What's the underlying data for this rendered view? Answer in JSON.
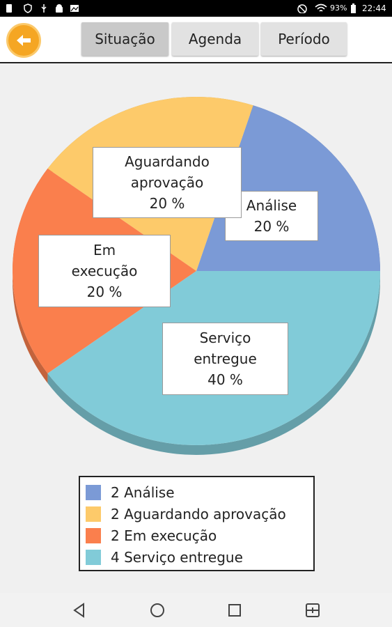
{
  "status_bar": {
    "battery_percent": "93%",
    "time": "22:44",
    "icons": [
      "sim-icon",
      "shield-icon",
      "usb-icon",
      "android-icon",
      "image-icon",
      "mute-icon",
      "wifi-icon",
      "battery-icon"
    ]
  },
  "toolbar": {
    "back_icon": "arrow-left-icon",
    "tabs": [
      {
        "label": "Situação",
        "active": true
      },
      {
        "label": "Agenda",
        "active": false
      },
      {
        "label": "Período",
        "active": false
      }
    ]
  },
  "chart_data": {
    "type": "pie",
    "categories": [
      "Análise",
      "Aguardando aprovação",
      "Em execução",
      "Serviço entregue"
    ],
    "values": [
      2,
      2,
      2,
      4
    ],
    "percent_labels": [
      "20 %",
      "20 %",
      "20 %",
      "40 %"
    ],
    "data_labels": [
      [
        "Análise",
        "20 %"
      ],
      [
        "Aguardando",
        "aprovação",
        "20 %"
      ],
      [
        "Em",
        "execução",
        "20 %"
      ],
      [
        "Serviço",
        "entregue",
        "40 %"
      ]
    ],
    "legend": [
      "2 Análise",
      "2 Aguardando aprovação",
      "2 Em execução",
      "4 Serviço entregue"
    ],
    "colors": [
      "#7b9ad6",
      "#fdca6a",
      "#fa7f4d",
      "#81cbd8"
    ],
    "legend_placement": "bottom",
    "style": "3d"
  },
  "nav_bar": {
    "buttons": [
      "back-triangle-icon",
      "home-circle-icon",
      "recents-square-icon",
      "split-screen-icon"
    ]
  }
}
